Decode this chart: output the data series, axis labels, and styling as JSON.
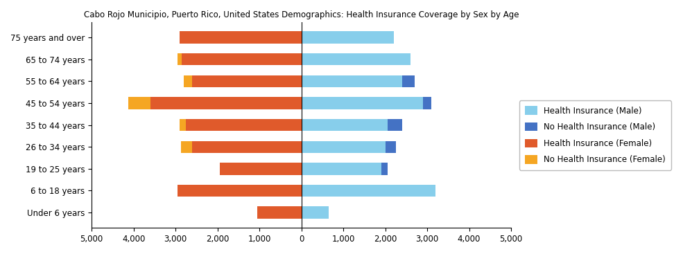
{
  "title": "Cabo Rojo Municipio, Puerto Rico, United States Demographics: Health Insurance Coverage by Sex by Age",
  "age_groups": [
    "Under 6 years",
    "6 to 18 years",
    "19 to 25 years",
    "26 to 34 years",
    "35 to 44 years",
    "45 to 54 years",
    "55 to 64 years",
    "65 to 74 years",
    "75 years and over"
  ],
  "health_ins_female": [
    1050,
    2950,
    1950,
    2600,
    2750,
    3600,
    2600,
    2850,
    2900
  ],
  "no_health_ins_female": [
    0,
    0,
    0,
    270,
    150,
    520,
    200,
    100,
    0
  ],
  "health_ins_male": [
    650,
    3200,
    1900,
    2000,
    2050,
    2900,
    2400,
    2600,
    2200
  ],
  "no_health_ins_male": [
    0,
    0,
    150,
    250,
    350,
    200,
    300,
    0,
    0
  ],
  "color_health_ins_male": "#87CEEB",
  "color_no_health_ins_male": "#4472C4",
  "color_health_ins_female": "#E05A2B",
  "color_no_health_ins_female": "#F5A623",
  "xlim": 5000,
  "legend_labels": [
    "Health Insurance (Male)",
    "No Health Insurance (Male)",
    "Health Insurance (Female)",
    "No Health Insurance (Female)"
  ]
}
